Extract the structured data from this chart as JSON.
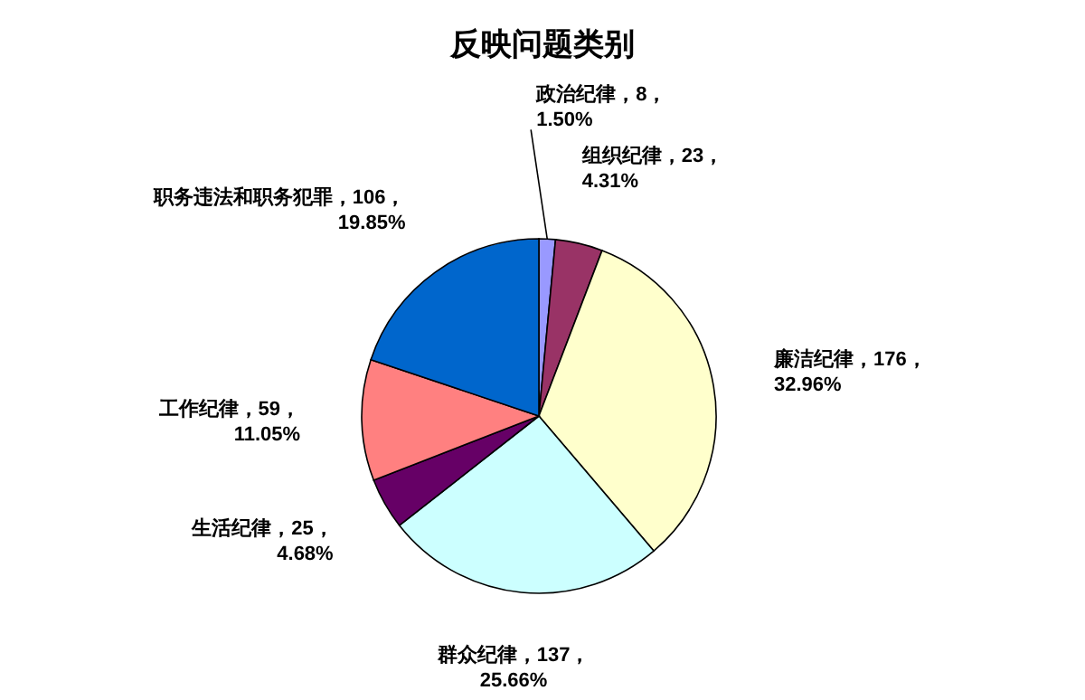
{
  "chart_data": {
    "type": "pie",
    "title": "反映问题类别",
    "categories": [
      "政治纪律",
      "组织纪律",
      "廉洁纪律",
      "群众纪律",
      "生活纪律",
      "工作纪律",
      "职务违法和职务犯罪"
    ],
    "values": [
      8,
      23,
      176,
      137,
      25,
      59,
      106
    ],
    "value_labels": [
      "，8，1.50%",
      "，23，4.31%",
      "，176，32.96%",
      "，137，25.66%",
      "，25，4.68%",
      "，59，11.05%",
      "，106，19.85%"
    ],
    "colors": [
      "#9999ff",
      "#993366",
      "#ffffcc",
      "#ccffff",
      "#660066",
      "#ff8080",
      "#0066cc"
    ],
    "legend": false
  }
}
